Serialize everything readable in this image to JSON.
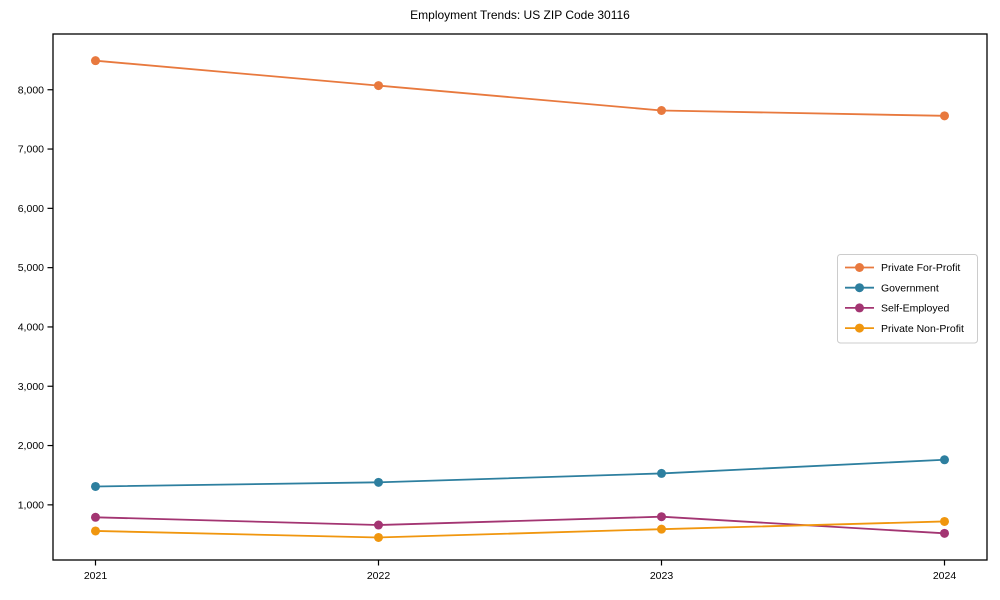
{
  "chart_data": {
    "type": "line",
    "title": "Employment Trends: US ZIP Code 30116",
    "x": [
      "2021",
      "2022",
      "2023",
      "2024"
    ],
    "series": [
      {
        "name": "Private For-Profit",
        "color": "#e8793e",
        "values": [
          8490,
          8070,
          7650,
          7560
        ]
      },
      {
        "name": "Government",
        "color": "#2d7f9f",
        "values": [
          1310,
          1380,
          1530,
          1760
        ]
      },
      {
        "name": "Self-Employed",
        "color": "#a33572",
        "values": [
          790,
          660,
          800,
          520
        ]
      },
      {
        "name": "Private Non-Profit",
        "color": "#f0960e",
        "values": [
          560,
          450,
          590,
          720
        ]
      }
    ],
    "xlabel": "",
    "ylabel": "",
    "yticks": [
      1000,
      2000,
      3000,
      4000,
      5000,
      6000,
      7000,
      8000
    ],
    "ytick_labels": [
      "1,000",
      "2,000",
      "3,000",
      "4,000",
      "5,000",
      "6,000",
      "7,000",
      "8,000"
    ],
    "ylim": [
      70,
      8940
    ],
    "grid": false,
    "legend_position": "center-right",
    "marker": "circle",
    "axis_color": "#000000",
    "legend_border_color": "#cccccc",
    "legend_background": "#ffffff"
  }
}
